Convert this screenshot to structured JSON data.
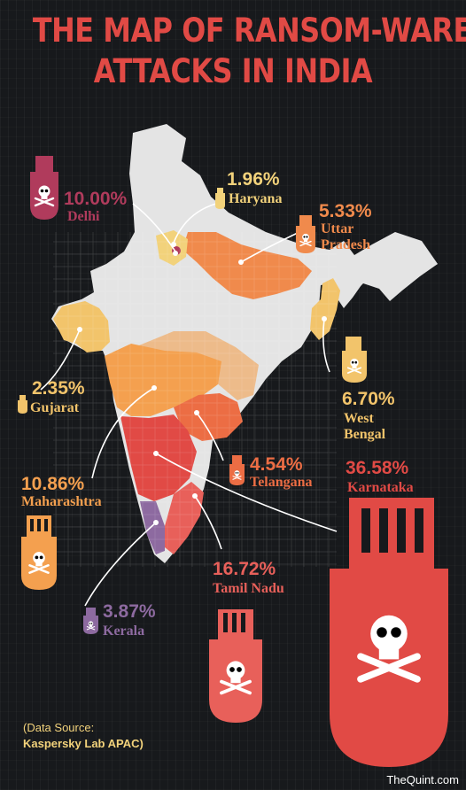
{
  "title": {
    "line1": "THE MAP OF RANSOM-WARE",
    "line2": "ATTACKS IN INDIA"
  },
  "chart_data": {
    "type": "choropleth-map",
    "title": "THE MAP OF RANSOM-WARE ATTACKS IN INDIA",
    "series": [
      {
        "region": "Delhi",
        "label": "10.00%",
        "value": 10.0,
        "color": "#b03b5c"
      },
      {
        "region": "Haryana",
        "label": "1.96%",
        "value": 1.96,
        "color": "#f2d27b"
      },
      {
        "region": "Uttar Pradesh",
        "label": "5.33%",
        "value": 5.33,
        "color": "#f08a4c"
      },
      {
        "region": "Gujarat",
        "label": "2.35%",
        "value": 2.35,
        "color": "#f2c46b"
      },
      {
        "region": "West Bengal",
        "label": "6.70%",
        "value": 6.7,
        "color": "#f2c46b"
      },
      {
        "region": "Telangana",
        "label": "4.54%",
        "value": 4.54,
        "color": "#ec6d44"
      },
      {
        "region": "Karnataka",
        "label": "36.58%",
        "value": 36.58,
        "color": "#e14a45"
      },
      {
        "region": "Maharashtra",
        "label": "10.86%",
        "value": 10.86,
        "color": "#f4a04f"
      },
      {
        "region": "Tamil Nadu",
        "label": "16.72%",
        "value": 16.72,
        "color": "#e8605a"
      },
      {
        "region": "Kerala",
        "label": "3.87%",
        "value": 3.87,
        "color": "#8d6aa0"
      }
    ]
  },
  "source": {
    "line1": "(Data Source:",
    "line2": "Kaspersky Lab APAC)"
  },
  "brand": "TheQuint.com",
  "colors": {
    "title": "#e14a45",
    "map_base": "#e4e4e4",
    "background": "#17191c"
  }
}
